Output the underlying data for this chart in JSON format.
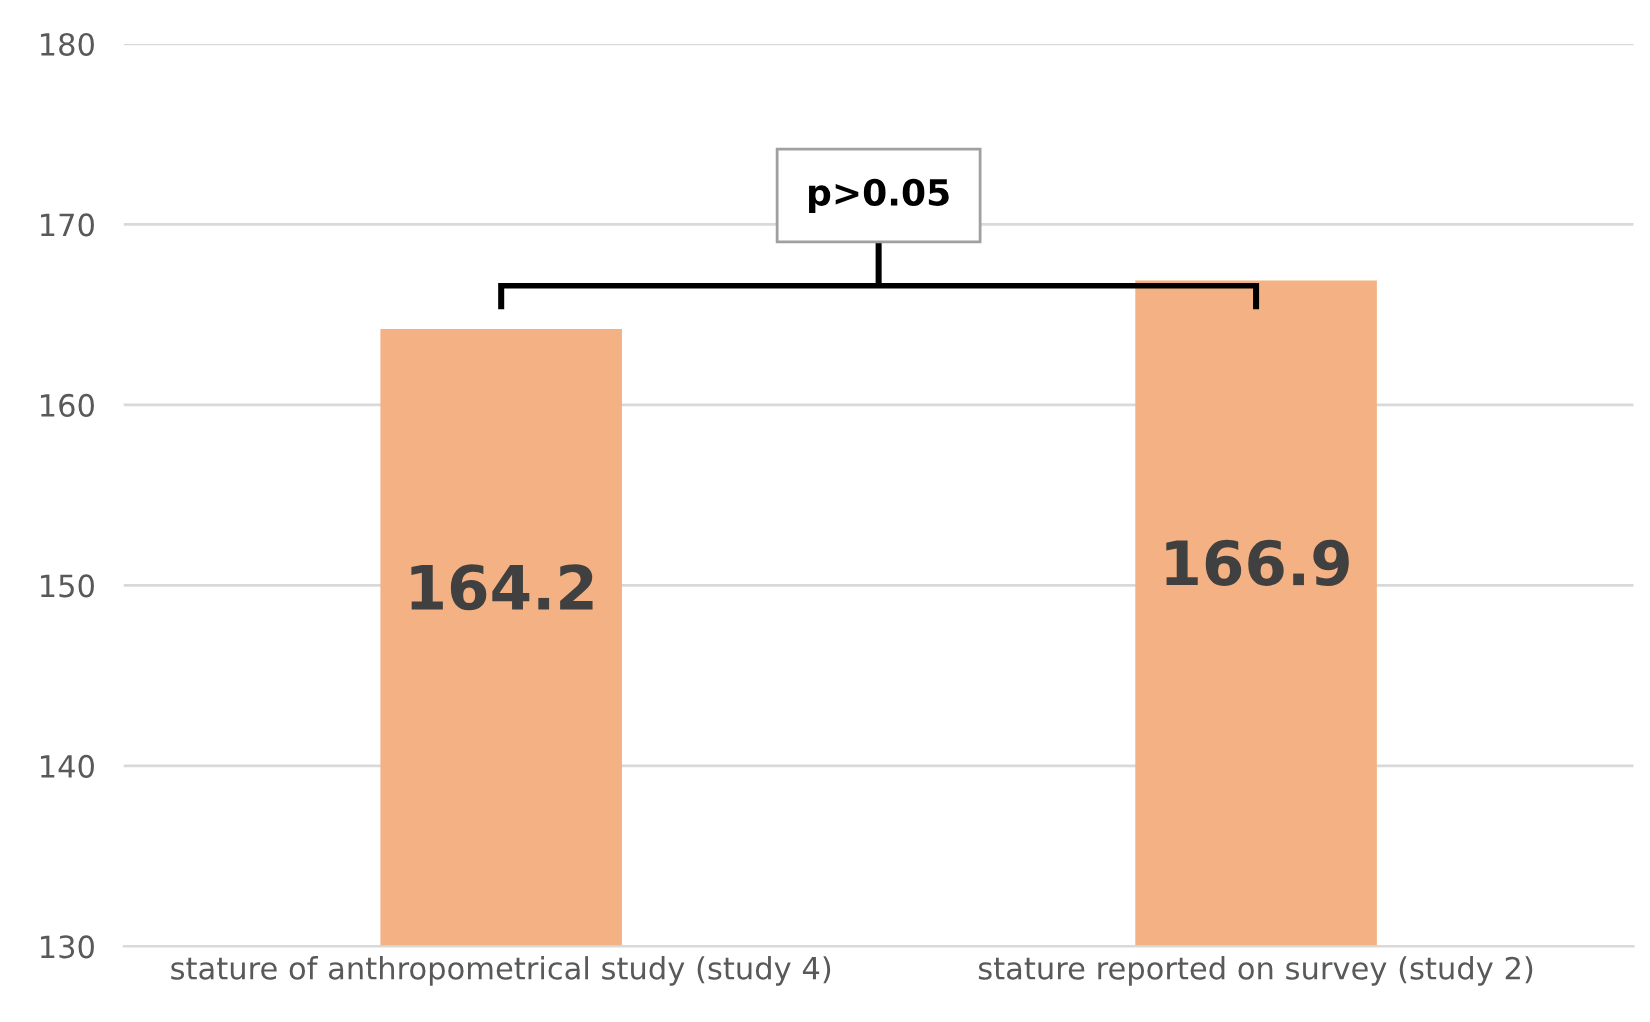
{
  "chart_data": {
    "type": "bar",
    "categories": [
      "stature of anthropometrical study (study 4)",
      "stature reported on survey (study 2)"
    ],
    "values": [
      164.2,
      166.9
    ],
    "color": "#f4b183",
    "data_labels": true,
    "ylim": [
      130,
      180
    ],
    "yticks": [
      130,
      140,
      150,
      160,
      170,
      180
    ],
    "grid": "y",
    "annotations": [
      "p>0.05"
    ]
  }
}
